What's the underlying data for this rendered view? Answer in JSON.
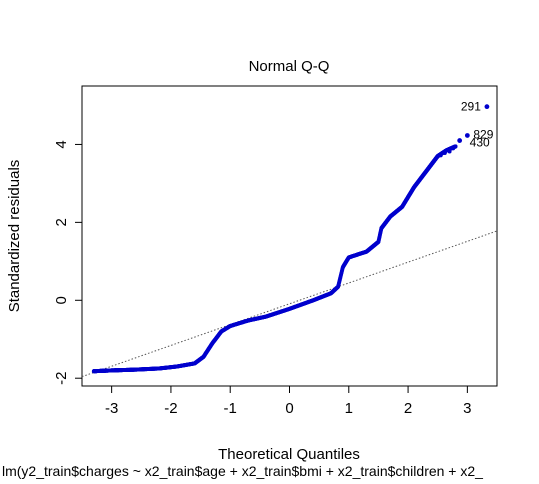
{
  "chart_data": {
    "type": "scatter",
    "title": "Normal Q-Q",
    "xlabel": "Theoretical Quantiles",
    "ylabel": "Standardized residuals",
    "subtitle": "lm(y2_train$charges ~ x2_train$age + x2_train$bmi + x2_train$children + x2_",
    "xlim": [
      -3.5,
      3.5
    ],
    "ylim": [
      -2.2,
      5.5
    ],
    "xticks": [
      -3,
      -2,
      -1,
      0,
      1,
      2,
      3
    ],
    "yticks": [
      -2,
      0,
      2,
      4
    ],
    "grid": false,
    "point_color": "#0000cd",
    "reference_line": {
      "x": [
        -3.5,
        3.5
      ],
      "y": [
        -1.96,
        1.78
      ],
      "style": "dotted"
    },
    "curve": [
      [
        -3.3,
        -1.82
      ],
      [
        -3.0,
        -1.8
      ],
      [
        -2.6,
        -1.78
      ],
      [
        -2.2,
        -1.75
      ],
      [
        -1.9,
        -1.7
      ],
      [
        -1.6,
        -1.62
      ],
      [
        -1.45,
        -1.45
      ],
      [
        -1.3,
        -1.1
      ],
      [
        -1.15,
        -0.8
      ],
      [
        -1.0,
        -0.66
      ],
      [
        -0.7,
        -0.52
      ],
      [
        -0.4,
        -0.42
      ],
      [
        0.0,
        -0.22
      ],
      [
        0.4,
        0.0
      ],
      [
        0.7,
        0.18
      ],
      [
        0.82,
        0.35
      ],
      [
        0.9,
        0.85
      ],
      [
        1.0,
        1.1
      ],
      [
        1.3,
        1.25
      ],
      [
        1.5,
        1.5
      ],
      [
        1.55,
        1.85
      ],
      [
        1.7,
        2.15
      ],
      [
        1.9,
        2.4
      ],
      [
        2.1,
        2.9
      ],
      [
        2.3,
        3.3
      ],
      [
        2.5,
        3.7
      ],
      [
        2.65,
        3.85
      ],
      [
        2.8,
        3.95
      ]
    ],
    "labeled_points": [
      {
        "label": "291",
        "x": 3.33,
        "y": 4.97
      },
      {
        "label": "829",
        "x": 3.0,
        "y": 4.23
      },
      {
        "label": "430",
        "x": 2.87,
        "y": 4.1
      }
    ]
  }
}
